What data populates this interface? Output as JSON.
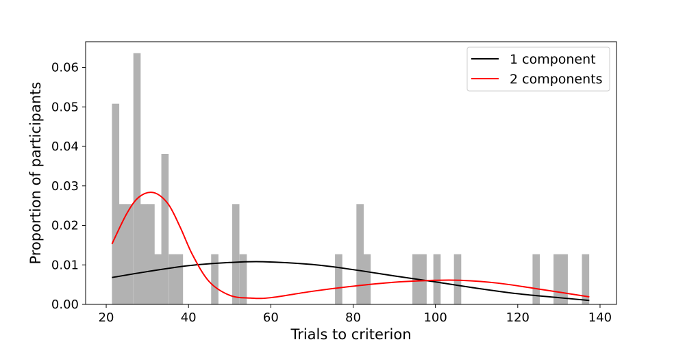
{
  "chart_data": {
    "type": "histogram",
    "title": "",
    "xlabel": "Trials to criterion",
    "ylabel": "Proportion of participants",
    "xlim": [
      15,
      144
    ],
    "ylim": [
      0,
      0.0665
    ],
    "xticks": [
      20,
      40,
      60,
      80,
      100,
      120,
      140
    ],
    "yticks": [
      0.0,
      0.01,
      0.02,
      0.03,
      0.04,
      0.05,
      0.06
    ],
    "ytick_labels": [
      "0.00",
      "0.01",
      "0.02",
      "0.03",
      "0.04",
      "0.05",
      "0.06"
    ],
    "grid": false,
    "legend_position": "top-right",
    "bar_color": "#b2b2b2",
    "histogram": {
      "bin_width": 1.72,
      "bins": [
        {
          "x0": 21.4,
          "value": 0.0508
        },
        {
          "x0": 23.1,
          "value": 0.0254
        },
        {
          "x0": 24.8,
          "value": 0.0254
        },
        {
          "x0": 26.6,
          "value": 0.0636
        },
        {
          "x0": 28.3,
          "value": 0.0254
        },
        {
          "x0": 30.0,
          "value": 0.0254
        },
        {
          "x0": 31.7,
          "value": 0.0127
        },
        {
          "x0": 33.4,
          "value": 0.0381
        },
        {
          "x0": 35.2,
          "value": 0.0127
        },
        {
          "x0": 36.9,
          "value": 0.0127
        },
        {
          "x0": 45.5,
          "value": 0.0127
        },
        {
          "x0": 50.6,
          "value": 0.0254
        },
        {
          "x0": 52.4,
          "value": 0.0127
        },
        {
          "x0": 75.6,
          "value": 0.0127
        },
        {
          "x0": 80.8,
          "value": 0.0254
        },
        {
          "x0": 82.5,
          "value": 0.0127
        },
        {
          "x0": 94.4,
          "value": 0.0127
        },
        {
          "x0": 96.1,
          "value": 0.0127
        },
        {
          "x0": 99.5,
          "value": 0.0127
        },
        {
          "x0": 104.5,
          "value": 0.0127
        },
        {
          "x0": 123.6,
          "value": 0.0127
        },
        {
          "x0": 128.7,
          "value": 0.0127
        },
        {
          "x0": 130.4,
          "value": 0.0127
        },
        {
          "x0": 135.6,
          "value": 0.0127
        }
      ]
    },
    "series": [
      {
        "name": "1 component",
        "color": "#000000",
        "x": [
          21.4,
          30,
          40,
          50,
          58,
          70,
          80,
          90,
          100,
          110,
          120,
          130,
          137.4
        ],
        "values": [
          0.0068,
          0.0083,
          0.0098,
          0.0106,
          0.0108,
          0.0101,
          0.0088,
          0.0072,
          0.0057,
          0.0041,
          0.0027,
          0.0017,
          0.001
        ]
      },
      {
        "name": "2 components",
        "color": "#ff0000",
        "x": [
          21.4,
          25,
          28,
          31.5,
          35,
          38,
          41,
          45,
          50,
          55,
          60,
          70,
          80,
          90,
          100,
          106,
          115,
          125,
          137.4
        ],
        "values": [
          0.0153,
          0.023,
          0.0272,
          0.0283,
          0.0255,
          0.0195,
          0.0125,
          0.0058,
          0.0023,
          0.0016,
          0.0017,
          0.0033,
          0.0046,
          0.0056,
          0.0061,
          0.0061,
          0.0054,
          0.0039,
          0.0019
        ]
      }
    ]
  }
}
